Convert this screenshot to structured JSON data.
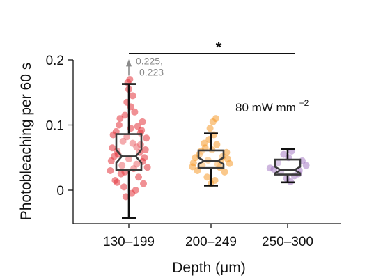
{
  "chart_data": {
    "type": "box",
    "xlabel": "Depth (μm)",
    "ylabel": "Photobleaching per 60 s",
    "ylim": [
      -0.05,
      0.2
    ],
    "yticks": [
      {
        "value": 0,
        "label": "0"
      },
      {
        "value": 0.1,
        "label": "0.1"
      },
      {
        "value": 0.2,
        "label": "0.2"
      }
    ],
    "condition_label": "80 mW mm",
    "condition_exponent": "−2",
    "significance": {
      "label": "*",
      "from": "130–199",
      "to": "250–300",
      "y": 0.21
    },
    "offscale_annotation": {
      "category": "130–199",
      "line1": "0.225,",
      "line2": "0.223",
      "color": "#8a8a8a"
    },
    "groups": [
      {
        "category": "130–199",
        "color": "#e3343c",
        "whisker_low": -0.043,
        "q1": 0.031,
        "median": 0.052,
        "q3": 0.086,
        "whisker_high": 0.163,
        "notch_low": 0.042,
        "notch_high": 0.062,
        "points": [
          {
            "dx": -0.9,
            "y": 0.045
          },
          {
            "dx": 0.8,
            "y": 0.05
          },
          {
            "dx": -0.6,
            "y": 0.06
          },
          {
            "dx": 0.4,
            "y": 0.04
          },
          {
            "dx": -0.3,
            "y": 0.075
          },
          {
            "dx": 0.6,
            "y": 0.07
          },
          {
            "dx": -0.8,
            "y": 0.085
          },
          {
            "dx": 0.9,
            "y": 0.08
          },
          {
            "dx": 0.1,
            "y": 0.095
          },
          {
            "dx": -0.5,
            "y": 0.1
          },
          {
            "dx": 0.7,
            "y": 0.105
          },
          {
            "dx": -0.2,
            "y": 0.115
          },
          {
            "dx": 0.3,
            "y": 0.12
          },
          {
            "dx": -0.1,
            "y": 0.135
          },
          {
            "dx": 0.2,
            "y": 0.145
          },
          {
            "dx": -0.05,
            "y": 0.165
          },
          {
            "dx": 0.05,
            "y": 0.17
          },
          {
            "dx": -0.95,
            "y": 0.03
          },
          {
            "dx": 0.95,
            "y": 0.035
          },
          {
            "dx": -0.4,
            "y": 0.025
          },
          {
            "dx": 0.5,
            "y": 0.02
          },
          {
            "dx": -0.7,
            "y": 0.015
          },
          {
            "dx": 0.75,
            "y": 0.01
          },
          {
            "dx": -0.25,
            "y": 0.005
          },
          {
            "dx": 0.35,
            "y": 0.0
          },
          {
            "dx": -0.15,
            "y": -0.01
          },
          {
            "dx": 0.15,
            "y": -0.005
          },
          {
            "dx": -0.55,
            "y": 0.055
          },
          {
            "dx": 0.55,
            "y": 0.058
          },
          {
            "dx": -0.85,
            "y": 0.065
          },
          {
            "dx": 0.85,
            "y": 0.062
          },
          {
            "dx": 0.0,
            "y": 0.048
          },
          {
            "dx": -0.35,
            "y": 0.038
          },
          {
            "dx": 0.25,
            "y": 0.033
          },
          {
            "dx": -0.65,
            "y": 0.09
          },
          {
            "dx": 0.65,
            "y": 0.092
          },
          {
            "dx": -0.45,
            "y": 0.11
          },
          {
            "dx": 0.45,
            "y": 0.098
          },
          {
            "dx": 0.1,
            "y": 0.128
          },
          {
            "dx": -0.2,
            "y": 0.028
          },
          {
            "dx": 0.2,
            "y": 0.072
          },
          {
            "dx": -0.75,
            "y": 0.052
          },
          {
            "dx": 0.7,
            "y": 0.044
          },
          {
            "dx": -0.1,
            "y": 0.082
          },
          {
            "dx": 0.4,
            "y": 0.066
          },
          {
            "dx": -0.6,
            "y": 0.012
          },
          {
            "dx": 0.6,
            "y": 0.088
          },
          {
            "dx": 0.0,
            "y": 0.155
          }
        ]
      },
      {
        "category": "200–249",
        "color": "#f59b2b",
        "whisker_low": 0.007,
        "q1": 0.034,
        "median": 0.045,
        "q3": 0.061,
        "whisker_high": 0.087,
        "notch_low": 0.04,
        "notch_high": 0.05,
        "points": [
          {
            "dx": -0.9,
            "y": 0.042
          },
          {
            "dx": 0.85,
            "y": 0.048
          },
          {
            "dx": -0.6,
            "y": 0.055
          },
          {
            "dx": 0.6,
            "y": 0.052
          },
          {
            "dx": -0.3,
            "y": 0.065
          },
          {
            "dx": 0.3,
            "y": 0.07
          },
          {
            "dx": -0.1,
            "y": 0.078
          },
          {
            "dx": 0.15,
            "y": 0.085
          },
          {
            "dx": -0.05,
            "y": 0.095
          },
          {
            "dx": 0.1,
            "y": 0.105
          },
          {
            "dx": 0.25,
            "y": 0.11
          },
          {
            "dx": -0.45,
            "y": 0.038
          },
          {
            "dx": 0.45,
            "y": 0.035
          },
          {
            "dx": -0.7,
            "y": 0.03
          },
          {
            "dx": 0.7,
            "y": 0.028
          },
          {
            "dx": -0.2,
            "y": 0.02
          },
          {
            "dx": 0.2,
            "y": 0.015
          },
          {
            "dx": 0.0,
            "y": 0.01
          },
          {
            "dx": -0.8,
            "y": 0.05
          },
          {
            "dx": 0.8,
            "y": 0.058
          },
          {
            "dx": -0.5,
            "y": 0.06
          },
          {
            "dx": 0.5,
            "y": 0.044
          },
          {
            "dx": -0.15,
            "y": 0.046
          },
          {
            "dx": 0.35,
            "y": 0.04
          },
          {
            "dx": -0.35,
            "y": 0.072
          },
          {
            "dx": 0.05,
            "y": 0.062
          },
          {
            "dx": -0.95,
            "y": 0.036
          },
          {
            "dx": 0.95,
            "y": 0.041
          }
        ]
      },
      {
        "category": "250–300",
        "color": "#a57cc4",
        "whisker_low": 0.012,
        "q1": 0.024,
        "median": 0.031,
        "q3": 0.047,
        "whisker_high": 0.063,
        "notch_low": 0.026,
        "notch_high": 0.036,
        "points": [
          {
            "dx": -0.9,
            "y": 0.034
          },
          {
            "dx": -0.7,
            "y": 0.032
          },
          {
            "dx": 0.75,
            "y": 0.045
          },
          {
            "dx": 0.55,
            "y": 0.025
          },
          {
            "dx": 0.95,
            "y": 0.038
          },
          {
            "dx": -0.2,
            "y": 0.055
          },
          {
            "dx": 0.2,
            "y": 0.06
          },
          {
            "dx": 0.05,
            "y": 0.05
          },
          {
            "dx": -0.35,
            "y": 0.028
          },
          {
            "dx": 0.35,
            "y": 0.022
          },
          {
            "dx": -0.05,
            "y": 0.018
          },
          {
            "dx": 0.15,
            "y": 0.013
          },
          {
            "dx": -0.5,
            "y": 0.042
          },
          {
            "dx": 0.6,
            "y": 0.03
          }
        ]
      }
    ]
  }
}
